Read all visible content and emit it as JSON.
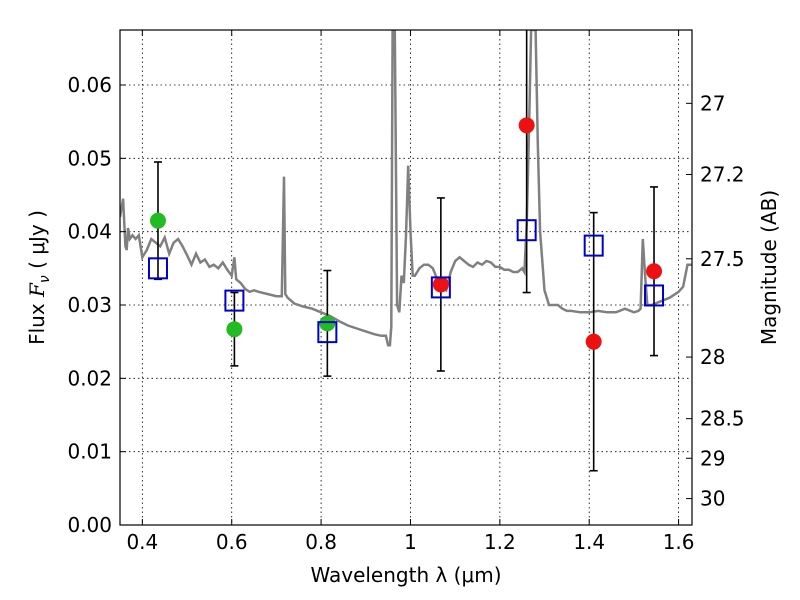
{
  "chart_data": {
    "type": "scatter",
    "title": "",
    "xlabel": "Wavelength  λ (μm)",
    "ylabel": "Flux  F_ν  ( μJy )",
    "ylabel_parts": {
      "prefix": "Flux  ",
      "symbol": "F",
      "subscript": "ν",
      "suffix": "  ( μJy )"
    },
    "y2label": "Magnitude (AB)",
    "xlim": [
      0.35,
      1.63
    ],
    "ylim": [
      0.0,
      0.0675
    ],
    "grid": true,
    "x_ticks": [
      {
        "value": 0.4,
        "label": "0.4"
      },
      {
        "value": 0.6,
        "label": "0.6"
      },
      {
        "value": 0.8,
        "label": "0.8"
      },
      {
        "value": 1.0,
        "label": "1"
      },
      {
        "value": 1.2,
        "label": "1.2"
      },
      {
        "value": 1.4,
        "label": "1.4"
      },
      {
        "value": 1.6,
        "label": "1.6"
      }
    ],
    "y_ticks": [
      {
        "value": 0.0,
        "label": "0.00"
      },
      {
        "value": 0.01,
        "label": "0.01"
      },
      {
        "value": 0.02,
        "label": "0.02"
      },
      {
        "value": 0.03,
        "label": "0.03"
      },
      {
        "value": 0.04,
        "label": "0.04"
      },
      {
        "value": 0.05,
        "label": "0.05"
      },
      {
        "value": 0.06,
        "label": "0.06"
      }
    ],
    "y2_ticks": [
      {
        "flux": 0.0575,
        "label": "27"
      },
      {
        "flux": 0.0478,
        "label": "27.2"
      },
      {
        "flux": 0.0363,
        "label": "27.5"
      },
      {
        "flux": 0.0229,
        "label": "28"
      },
      {
        "flux": 0.0145,
        "label": "28.5"
      },
      {
        "flux": 0.0091,
        "label": "29"
      },
      {
        "flux": 0.0036,
        "label": "30"
      }
    ],
    "colors": {
      "model": "#808080",
      "green": "#22bb22",
      "red": "#ee1111",
      "model_box": "#0000cc",
      "errorbar": "#000000"
    },
    "series": [
      {
        "kind": "line",
        "color": "#808080",
        "x": [
          0.35,
          0.357,
          0.362,
          0.365,
          0.368,
          0.372,
          0.378,
          0.385,
          0.392,
          0.4,
          0.41,
          0.42,
          0.43,
          0.44,
          0.45,
          0.46,
          0.47,
          0.48,
          0.49,
          0.5,
          0.51,
          0.52,
          0.53,
          0.54,
          0.55,
          0.56,
          0.57,
          0.58,
          0.59,
          0.6,
          0.606,
          0.61,
          0.62,
          0.63,
          0.64,
          0.65,
          0.66,
          0.68,
          0.7,
          0.712,
          0.717,
          0.72,
          0.725,
          0.74,
          0.76,
          0.78,
          0.8,
          0.82,
          0.84,
          0.86,
          0.88,
          0.9,
          0.92,
          0.935,
          0.945,
          0.95,
          0.954,
          0.957,
          0.96,
          0.965,
          0.97,
          0.975,
          0.98,
          0.985,
          0.99,
          0.995,
          1.0,
          1.005,
          1.01,
          1.015,
          1.02,
          1.03,
          1.04,
          1.05,
          1.06,
          1.07,
          1.08,
          1.09,
          1.1,
          1.11,
          1.12,
          1.13,
          1.14,
          1.15,
          1.16,
          1.17,
          1.18,
          1.19,
          1.2,
          1.21,
          1.22,
          1.23,
          1.24,
          1.25,
          1.255,
          1.26,
          1.265,
          1.27,
          1.275,
          1.28,
          1.285,
          1.29,
          1.3,
          1.31,
          1.32,
          1.33,
          1.34,
          1.35,
          1.36,
          1.38,
          1.4,
          1.42,
          1.44,
          1.46,
          1.48,
          1.5,
          1.51,
          1.515,
          1.52,
          1.525,
          1.53,
          1.54,
          1.56,
          1.58,
          1.6,
          1.61,
          1.62,
          1.63
        ],
        "y": [
          0.042,
          0.0445,
          0.038,
          0.0375,
          0.0405,
          0.039,
          0.0395,
          0.039,
          0.0395,
          0.0365,
          0.0375,
          0.039,
          0.0385,
          0.038,
          0.0392,
          0.037,
          0.0385,
          0.039,
          0.038,
          0.0368,
          0.0355,
          0.037,
          0.0358,
          0.0362,
          0.0352,
          0.0355,
          0.035,
          0.0358,
          0.0348,
          0.034,
          0.0365,
          0.0335,
          0.033,
          0.0322,
          0.0318,
          0.032,
          0.0318,
          0.0315,
          0.0312,
          0.0312,
          0.0475,
          0.0315,
          0.031,
          0.0302,
          0.0298,
          0.0295,
          0.029,
          0.0285,
          0.0278,
          0.0272,
          0.0268,
          0.0264,
          0.026,
          0.0258,
          0.0258,
          0.0245,
          0.0245,
          0.027,
          0.0675,
          0.0675,
          0.03,
          0.029,
          0.034,
          0.033,
          0.0395,
          0.049,
          0.04,
          0.034,
          0.034,
          0.0345,
          0.035,
          0.0355,
          0.0355,
          0.035,
          0.0335,
          0.0325,
          0.032,
          0.0345,
          0.036,
          0.0365,
          0.036,
          0.0355,
          0.0352,
          0.0358,
          0.0355,
          0.036,
          0.0358,
          0.0352,
          0.0352,
          0.0348,
          0.0348,
          0.0345,
          0.0345,
          0.035,
          0.0345,
          0.041,
          0.053,
          0.0675,
          0.0675,
          0.0675,
          0.052,
          0.04,
          0.032,
          0.03,
          0.03,
          0.03,
          0.0295,
          0.0292,
          0.0292,
          0.029,
          0.029,
          0.0292,
          0.029,
          0.029,
          0.0295,
          0.029,
          0.0292,
          0.0295,
          0.039,
          0.034,
          0.03,
          0.03,
          0.0305,
          0.031,
          0.0318,
          0.0325,
          0.0355,
          0.0355
        ]
      },
      {
        "kind": "points",
        "marker": "circle",
        "color": "#22bb22",
        "x": [
          0.435,
          0.606,
          0.814
        ],
        "y": [
          0.0415,
          0.0267,
          0.0275
        ],
        "yerr": [
          0.008,
          0.005,
          0.0072
        ]
      },
      {
        "kind": "points",
        "marker": "circle",
        "color": "#ee1111",
        "x": [
          1.068,
          1.26,
          1.41,
          1.545
        ],
        "y": [
          0.0328,
          0.0545,
          0.025,
          0.0346
        ],
        "yerr": [
          0.0118,
          0.0228,
          0.0176,
          0.0115
        ]
      },
      {
        "kind": "points",
        "marker": "square",
        "color": "#0000cc",
        "x": [
          0.435,
          0.606,
          0.814,
          1.068,
          1.26,
          1.41,
          1.545
        ],
        "y": [
          0.035,
          0.0306,
          0.0263,
          0.0324,
          0.0402,
          0.0381,
          0.0313
        ]
      }
    ]
  }
}
